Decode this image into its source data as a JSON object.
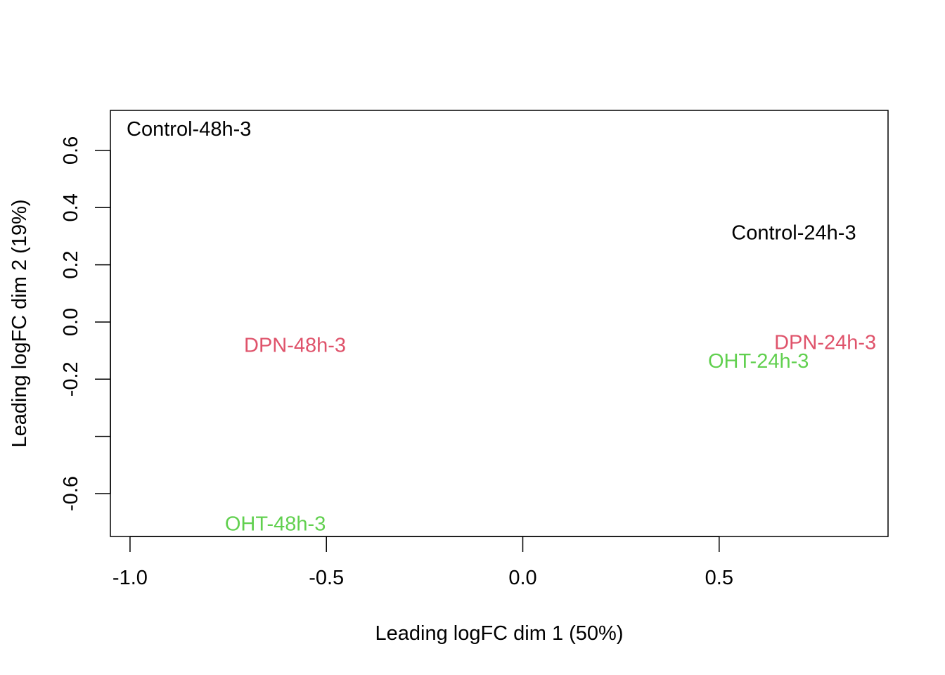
{
  "chart_data": {
    "type": "scatter",
    "title": "",
    "xlabel": "Leading logFC dim 1 (50%)",
    "ylabel": "Leading logFC dim 2 (19%)",
    "xlim": [
      -1.05,
      0.93
    ],
    "ylim": [
      -0.75,
      0.74
    ],
    "x_ticks": [
      {
        "value": -1.0,
        "label": "-1.0"
      },
      {
        "value": -0.5,
        "label": "-0.5"
      },
      {
        "value": 0.0,
        "label": "0.0"
      },
      {
        "value": 0.5,
        "label": "0.5"
      }
    ],
    "y_ticks": [
      {
        "value": 0.6,
        "label": "0.6"
      },
      {
        "value": 0.4,
        "label": "0.4"
      },
      {
        "value": 0.2,
        "label": "0.2"
      },
      {
        "value": 0.0,
        "label": "0.0"
      },
      {
        "value": -0.2,
        "label": "-0.2"
      },
      {
        "value": -0.4,
        "label": ""
      },
      {
        "value": -0.6,
        "label": "-0.6"
      }
    ],
    "grid": false,
    "points": [
      {
        "label": "Control-48h-3",
        "x": -0.85,
        "y": 0.674,
        "color": "#000000"
      },
      {
        "label": "Control-24h-3",
        "x": 0.69,
        "y": 0.311,
        "color": "#000000"
      },
      {
        "label": "DPN-48h-3",
        "x": -0.58,
        "y": -0.083,
        "color": "#DF536B"
      },
      {
        "label": "DPN-24h-3",
        "x": 0.77,
        "y": -0.073,
        "color": "#DF536B"
      },
      {
        "label": "OHT-24h-3",
        "x": 0.6,
        "y": -0.138,
        "color": "#61D04F"
      },
      {
        "label": "OHT-48h-3",
        "x": -0.63,
        "y": -0.707,
        "color": "#61D04F"
      }
    ]
  }
}
